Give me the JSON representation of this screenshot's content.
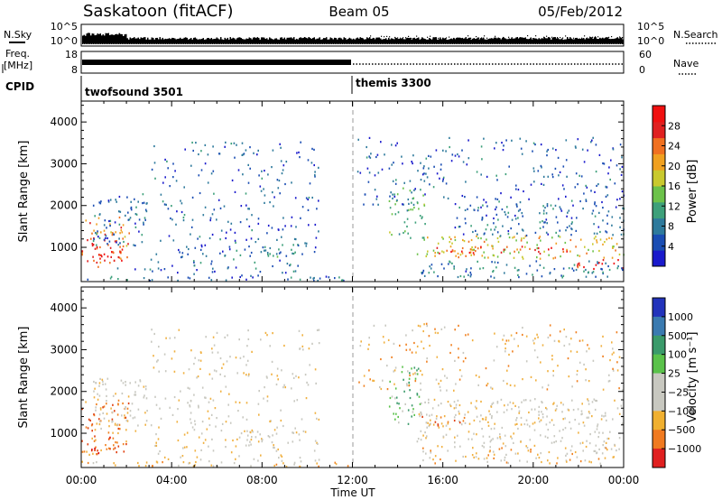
{
  "header": {
    "title": "Saskatoon (fitACF)",
    "beam": "Beam 05",
    "date": "05/Feb/2012"
  },
  "noise_panel": {
    "left_label": "N.Sky",
    "right_label": "N.Search",
    "ticks": [
      "10^5",
      "10^0"
    ]
  },
  "freq_panel": {
    "left_label_line1": "Freq.",
    "left_label_line2": "[MHz]",
    "left_ticks": [
      "18",
      "8"
    ],
    "right_ticks": [
      "60",
      "0"
    ],
    "right_label": "Nave"
  },
  "cpid_panel": {
    "label": "CPID",
    "segments": [
      {
        "name": "twofsound 3501",
        "start_hour": 0,
        "end_hour": 12
      },
      {
        "name": "themis 3300",
        "start_hour": 12,
        "end_hour": 24
      }
    ]
  },
  "colors": {
    "power": [
      "#1a1acc",
      "#1a4db3",
      "#2e7a9c",
      "#3da07a",
      "#6cc24a",
      "#c9c92e",
      "#f0a020",
      "#f07020",
      "#e02020",
      "#f01010"
    ],
    "velocity": [
      "#2233bb",
      "#2d6fa8",
      "#3a9a6a",
      "#5ac24a",
      "#c8c8c0",
      "#c8c8c0",
      "#f0b040",
      "#f08020",
      "#e04010",
      "#e01010"
    ],
    "velocity_bands": [
      "#2233bb",
      "#3a7ab0",
      "#3a9a6a",
      "#5ac24a",
      "#c8c8c0",
      "#f0b030",
      "#f07a20",
      "#e02020"
    ]
  },
  "chart_data": [
    {
      "type": "heatmap",
      "name": "power",
      "xlabel": "",
      "ylabel": "Slant Range [km]",
      "xlim": [
        0,
        24
      ],
      "ylim": [
        180,
        4500
      ],
      "yticks": [
        1000,
        2000,
        3000,
        4000
      ],
      "colorbar": {
        "label": "Power [dB]",
        "range": [
          0,
          32
        ],
        "tick_values": [
          4,
          8,
          12,
          16,
          20,
          24,
          28
        ],
        "tick_labels": [
          "4",
          "8",
          "12",
          "16",
          "20",
          "24",
          "28"
        ]
      },
      "regions": [
        {
          "t0": 0.0,
          "t1": 2.1,
          "r0": 500,
          "r1": 1700,
          "level": 22
        },
        {
          "t0": 0.2,
          "t1": 1.8,
          "r0": 650,
          "r1": 1000,
          "level": 29
        },
        {
          "t0": 0.5,
          "t1": 2.9,
          "r0": 1000,
          "r1": 2300,
          "level": 5
        },
        {
          "t0": 1.5,
          "t1": 4.2,
          "r0": 380,
          "r1": 480,
          "level": 5
        },
        {
          "t0": 3.0,
          "t1": 10.5,
          "r0": 250,
          "r1": 3500,
          "level": 4
        },
        {
          "t0": 6.8,
          "t1": 9.7,
          "r0": 750,
          "r1": 1050,
          "level": 7
        },
        {
          "t0": 4.2,
          "t1": 5.6,
          "r0": 750,
          "r1": 1000,
          "level": 5
        },
        {
          "t0": 0.0,
          "t1": 11.9,
          "r0": 180,
          "r1": 280,
          "level": 5
        },
        {
          "t0": 13.6,
          "t1": 15.2,
          "r0": 1200,
          "r1": 2600,
          "level": 10
        },
        {
          "t0": 14.8,
          "t1": 24.0,
          "r0": 700,
          "r1": 1250,
          "level": 17
        },
        {
          "t0": 15.5,
          "t1": 22.5,
          "r0": 820,
          "r1": 1000,
          "level": 25
        },
        {
          "t0": 16.5,
          "t1": 24.0,
          "r0": 1250,
          "r1": 2000,
          "level": 5
        },
        {
          "t0": 21.7,
          "t1": 24.0,
          "r0": 450,
          "r1": 700,
          "level": 28
        },
        {
          "t0": 12.2,
          "t1": 24.0,
          "r0": 2000,
          "r1": 3600,
          "level": 4
        },
        {
          "t0": 15.0,
          "t1": 24.0,
          "r0": 250,
          "r1": 650,
          "level": 6
        }
      ]
    },
    {
      "type": "heatmap",
      "name": "velocity",
      "xlabel": "Time UT",
      "ylabel": "Slant Range [km]",
      "xlim": [
        0,
        24
      ],
      "ylim": [
        180,
        4500
      ],
      "yticks": [
        1000,
        2000,
        3000,
        4000
      ],
      "xticks": [
        "00:00",
        "04:00",
        "08:00",
        "12:00",
        "16:00",
        "20:00",
        "00:00"
      ],
      "colorbar": {
        "label": "Velocity [m s⁻¹]",
        "tick_labels": [
          "1000",
          "500",
          "100",
          "25",
          "−25",
          "−100",
          "−500",
          "−1000"
        ]
      },
      "regions": [
        {
          "t0": 0.0,
          "t1": 2.1,
          "r0": 450,
          "r1": 1800,
          "level": 7
        },
        {
          "t0": 0.3,
          "t1": 1.6,
          "r0": 500,
          "r1": 900,
          "level": 8
        },
        {
          "t0": 0.5,
          "t1": 2.9,
          "r0": 1000,
          "r1": 2300,
          "level": 5
        },
        {
          "t0": 3.0,
          "t1": 10.5,
          "r0": 250,
          "r1": 3500,
          "level": 5
        },
        {
          "t0": 6.8,
          "t1": 9.7,
          "r0": 750,
          "r1": 1050,
          "level": 5
        },
        {
          "t0": 0.0,
          "t1": 11.9,
          "r0": 180,
          "r1": 300,
          "level": 6
        },
        {
          "t0": 13.6,
          "t1": 15.0,
          "r0": 1200,
          "r1": 2600,
          "level": 3
        },
        {
          "t0": 14.8,
          "t1": 24.0,
          "r0": 650,
          "r1": 1800,
          "level": 5
        },
        {
          "t0": 15.0,
          "t1": 17.0,
          "r0": 1100,
          "r1": 1400,
          "level": 7
        },
        {
          "t0": 12.2,
          "t1": 24.0,
          "r0": 2000,
          "r1": 3600,
          "level": 6
        },
        {
          "t0": 15.0,
          "t1": 24.0,
          "r0": 250,
          "r1": 650,
          "level": 6
        }
      ]
    }
  ]
}
